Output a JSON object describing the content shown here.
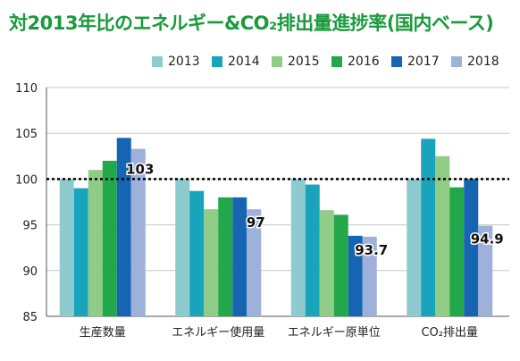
{
  "title": "対2013年比のエネルギー&CO₂排出量進捗率(国内ベース)",
  "colors": {
    "title": "#1a9a3c",
    "series": [
      "#8ecbcf",
      "#1aa4bc",
      "#8fcc87",
      "#22a84a",
      "#1565b3",
      "#9db1da"
    ],
    "reference_line": "#000000"
  },
  "chart_data": {
    "type": "bar",
    "categories": [
      "生産数量",
      "エネルギー使用量",
      "エネルギー原単位",
      "CO₂排出量"
    ],
    "series": [
      {
        "name": "2013",
        "values": [
          100,
          100,
          100,
          100
        ]
      },
      {
        "name": "2014",
        "values": [
          99.0,
          98.7,
          99.4,
          104.4
        ]
      },
      {
        "name": "2015",
        "values": [
          101.0,
          96.7,
          96.6,
          102.5
        ]
      },
      {
        "name": "2016",
        "values": [
          102.0,
          98.0,
          96.1,
          99.1
        ]
      },
      {
        "name": "2017",
        "values": [
          104.5,
          98.0,
          93.8,
          100.0
        ]
      },
      {
        "name": "2018",
        "values": [
          103.3,
          96.7,
          93.7,
          94.9
        ]
      }
    ],
    "data_labels": [
      "103",
      "97",
      "93.7",
      "94.9"
    ],
    "ylim": [
      85,
      110
    ],
    "yticks": [
      85,
      90,
      95,
      100,
      105,
      110
    ],
    "reference_value": 100,
    "legend_position": "top-right",
    "grid": true
  }
}
